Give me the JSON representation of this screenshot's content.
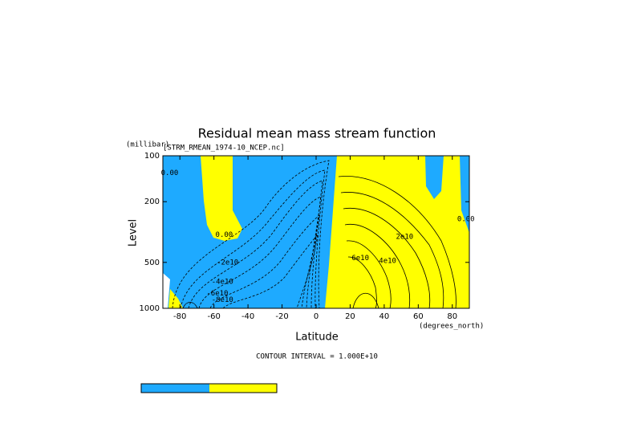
{
  "chart_data": {
    "type": "contour",
    "title": "Residual mean mass stream function",
    "subtitle": "[STRM_RMEAN_1974-10_NCEP.nc]",
    "y_unit": "(millibar)",
    "x_unit": "(degrees_north)",
    "xlabel": "Latitude",
    "ylabel": "Level",
    "footnote": "CONTOUR INTERVAL = 1.000E+10",
    "xlim": [
      -90,
      90
    ],
    "xticks": [
      -80,
      -60,
      -40,
      -20,
      0,
      20,
      40,
      60,
      80
    ],
    "ylim": [
      1000,
      100
    ],
    "yticks": [
      100,
      200,
      500,
      1000
    ],
    "ylog": true,
    "colors": [
      "#1eaaff",
      "#ffff00"
    ],
    "contour_labels": [
      {
        "value": 0,
        "label": "0.00",
        "lat": -86,
        "level": 130
      },
      {
        "value": 0,
        "label": "0.00",
        "lat": -54,
        "level": 330
      },
      {
        "value": -20000000000,
        "label": "-2e10",
        "lat": -52,
        "level": 500
      },
      {
        "value": -40000000000,
        "label": "-4e10",
        "lat": -55,
        "level": 670
      },
      {
        "value": -60000000000,
        "label": "-6e10",
        "lat": -58,
        "level": 800
      },
      {
        "value": -80000000000,
        "label": "-8e10",
        "lat": -55,
        "level": 880
      },
      {
        "value": 20000000000,
        "label": "2e10",
        "lat": 52,
        "level": 340
      },
      {
        "value": 40000000000,
        "label": "4e10",
        "lat": 42,
        "level": 490
      },
      {
        "value": 60000000000,
        "label": "6e10",
        "lat": 26,
        "level": 470
      },
      {
        "value": 0,
        "label": "0.00",
        "lat": 88,
        "level": 260
      }
    ]
  }
}
